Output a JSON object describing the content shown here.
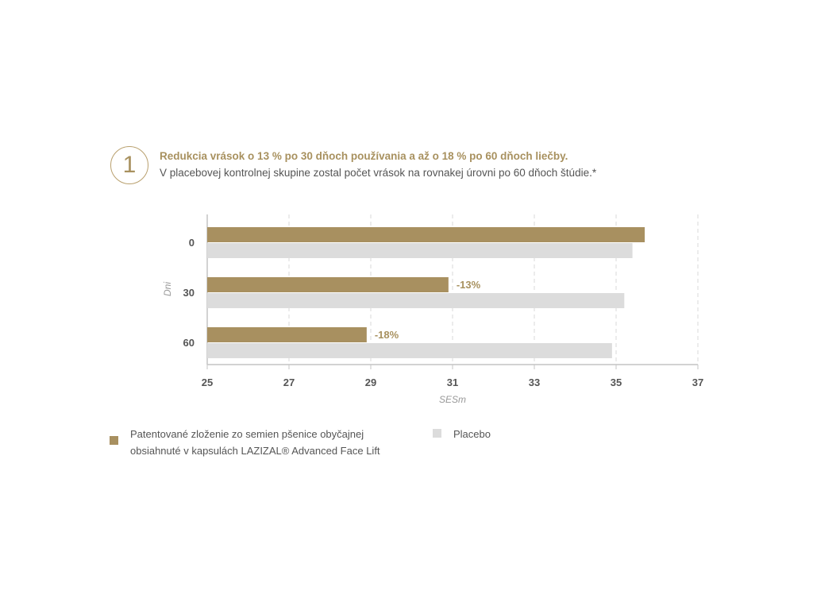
{
  "header": {
    "step_number": "1",
    "headline": "Redukcia vrások o 13 % po 30 dňoch používania a až o 18 % po 60 dňoch liečby.",
    "subline": "V placebovej kontrolnej skupine zostal počet vrások na rovnakej úrovni po 60 dňoch štúdie.*"
  },
  "colors": {
    "product": "#a89060",
    "placebo": "#dcdcdc",
    "accent_text": "#a8915f"
  },
  "chart_data": {
    "type": "bar",
    "orientation": "horizontal",
    "categories": [
      "0",
      "30",
      "60"
    ],
    "series": [
      {
        "key": "product",
        "values": [
          35.7,
          30.9,
          28.9
        ]
      },
      {
        "key": "placebo",
        "values": [
          35.4,
          35.2,
          34.9
        ]
      }
    ],
    "annotations": [
      "",
      "-13%",
      "-18%"
    ],
    "xlabel": "SESm",
    "ylabel": "Dni",
    "xlim": [
      25,
      37
    ],
    "xticks": [
      "25",
      "27",
      "29",
      "31",
      "33",
      "35",
      "37"
    ],
    "grid": "vertical-dashed"
  },
  "legend": {
    "product_lines": [
      "Patentované zloženie zo semien pšenice obyčajnej",
      "obsiahnuté v kapsulách LAZIZAL® Advanced Face Lift"
    ],
    "placebo": "Placebo"
  }
}
